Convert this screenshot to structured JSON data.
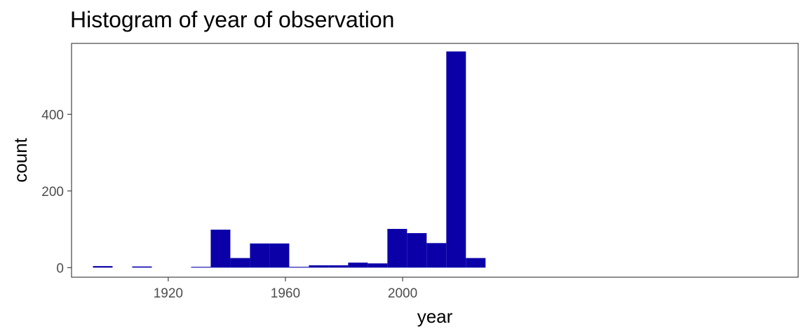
{
  "chart_data": {
    "type": "bar",
    "title": "Histogram of year of observation",
    "xlabel": "year",
    "ylabel": "count",
    "bar_color": "#0b00a8",
    "xlim": [
      1887,
      2135
    ],
    "ylim": [
      -25,
      585
    ],
    "x_ticks": [
      {
        "value": 1920,
        "label": "1920"
      },
      {
        "value": 1960,
        "label": "1960"
      },
      {
        "value": 2000,
        "label": "2000"
      }
    ],
    "y_ticks": [
      {
        "value": 0,
        "label": "0"
      },
      {
        "value": 200,
        "label": "200"
      },
      {
        "value": 400,
        "label": "400"
      }
    ],
    "grid": false,
    "bins": [
      {
        "x0": 1894.3,
        "x1": 1901.0,
        "count": 4
      },
      {
        "x0": 1901.0,
        "x1": 1907.7,
        "count": 0
      },
      {
        "x0": 1907.7,
        "x1": 1914.4,
        "count": 3
      },
      {
        "x0": 1914.4,
        "x1": 1921.1,
        "count": 0
      },
      {
        "x0": 1921.1,
        "x1": 1927.8,
        "count": 0
      },
      {
        "x0": 1927.8,
        "x1": 1934.5,
        "count": 2
      },
      {
        "x0": 1934.5,
        "x1": 1941.2,
        "count": 99
      },
      {
        "x0": 1941.2,
        "x1": 1947.9,
        "count": 25
      },
      {
        "x0": 1947.9,
        "x1": 1954.6,
        "count": 63
      },
      {
        "x0": 1954.6,
        "x1": 1961.3,
        "count": 63
      },
      {
        "x0": 1961.3,
        "x1": 1968.0,
        "count": 2
      },
      {
        "x0": 1968.0,
        "x1": 1974.7,
        "count": 6
      },
      {
        "x0": 1974.7,
        "x1": 1981.4,
        "count": 6
      },
      {
        "x0": 1981.4,
        "x1": 1988.1,
        "count": 13
      },
      {
        "x0": 1988.1,
        "x1": 1994.8,
        "count": 11
      },
      {
        "x0": 1994.8,
        "x1": 2001.5,
        "count": 101
      },
      {
        "x0": 2001.5,
        "x1": 2008.2,
        "count": 90
      },
      {
        "x0": 2008.2,
        "x1": 2014.9,
        "count": 64
      },
      {
        "x0": 2014.9,
        "x1": 2021.6,
        "count": 564
      },
      {
        "x0": 2021.6,
        "x1": 2028.3,
        "count": 25
      }
    ]
  }
}
